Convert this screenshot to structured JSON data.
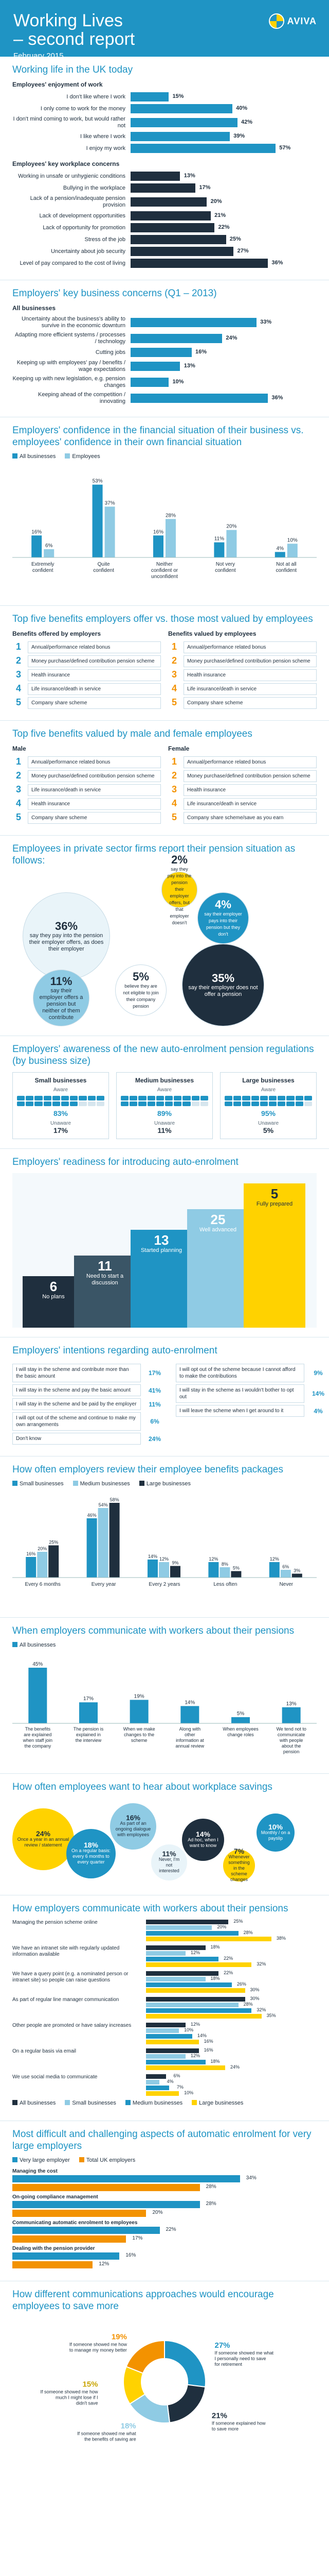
{
  "header": {
    "title_line1": "Working Lives",
    "title_line2": "– second report",
    "date": "February 2015",
    "logo": "AVIVA"
  },
  "colors": {
    "blue": "#1f94c4",
    "light": "#8fcbe4",
    "yellow": "#ffd200",
    "dark": "#1f2f3e",
    "orange": "#f39200"
  },
  "s1": {
    "title": "Working life in the UK today",
    "sub": "Employees' enjoyment of work",
    "items": [
      {
        "label": "I don't like where I work",
        "value": 15
      },
      {
        "label": "I only come to work for the money",
        "value": 40
      },
      {
        "label": "I don't mind coming to work, but would rather not",
        "value": 42
      },
      {
        "label": "I like where I work",
        "value": 39
      },
      {
        "label": "I enjoy my work",
        "value": 57
      }
    ]
  },
  "s2": {
    "sub": "Employees' key workplace concerns",
    "items": [
      {
        "label": "Working in unsafe or unhygienic conditions",
        "value": 13
      },
      {
        "label": "Bullying in the workplace",
        "value": 17
      },
      {
        "label": "Lack of a pension/inadequate pension provision",
        "value": 20
      },
      {
        "label": "Lack of development opportunities",
        "value": 21
      },
      {
        "label": "Lack of opportunity for promotion",
        "value": 22
      },
      {
        "label": "Stress of the job",
        "value": 25
      },
      {
        "label": "Uncertainty about job security",
        "value": 27
      },
      {
        "label": "Level of pay compared to the cost of living",
        "value": 36
      }
    ]
  },
  "s3": {
    "title": "Employers' key business concerns (Q1 – 2013)",
    "sub": "All businesses",
    "items": [
      {
        "label": "Uncertainty about the business's ability to survive in the economic downturn",
        "value": 33
      },
      {
        "label": "Adapting more efficient systems / processes / technology",
        "value": 24
      },
      {
        "label": "Cutting jobs",
        "value": 16
      },
      {
        "label": "Keeping up with employees' pay / benefits / wage expectations",
        "value": 13
      },
      {
        "label": "Keeping up with new legislation, e.g. pension changes",
        "value": 10
      },
      {
        "label": "Keeping ahead of the competition / innovating",
        "value": 36
      }
    ]
  },
  "s4": {
    "title": "Employers' confidence in the financial situation of their business vs. employees' confidence in their own financial situation",
    "legend": [
      "All businesses",
      "Employees"
    ],
    "categories": [
      "Extremely confident",
      "Quite confident",
      "Neither confident or unconfident",
      "Not very confident",
      "Not at all confident"
    ],
    "employers": [
      16,
      53,
      16,
      11,
      4
    ],
    "employees": [
      6,
      37,
      28,
      20,
      10
    ]
  },
  "s5": {
    "title": "Top five benefits employers offer vs. those most valued by employees",
    "left_head": "Benefits offered by employers",
    "right_head": "Benefits valued by employees",
    "left": [
      "Annual/performance related bonus",
      "Money purchase/defined contribution pension scheme",
      "Health insurance",
      "Life insurance/death in service",
      "Company share scheme"
    ],
    "right": [
      "Annual/performance related bonus",
      "Money purchase/defined contribution pension scheme",
      "Health insurance",
      "Life insurance/death in service",
      "Company share scheme"
    ]
  },
  "s6": {
    "title": "Top five benefits valued by male and female employees",
    "male_head": "Male",
    "female_head": "Female",
    "male": [
      "Annual/performance related bonus",
      "Money purchase/defined contribution pension scheme",
      "Life insurance/death in service",
      "Health insurance",
      "Company share scheme"
    ],
    "female": [
      "Annual/performance related bonus",
      "Money purchase/defined contribution pension scheme",
      "Health insurance",
      "Life insurance/death in service",
      "Company share scheme/save as you earn"
    ]
  },
  "s7": {
    "title": "Employees in private sector firms report their pension situation as follows:",
    "items": [
      {
        "value": "2%",
        "text": "say they pay into the pension their employer offers, but that employer doesn't"
      },
      {
        "value": "4%",
        "text": "say their employer pays into their pension but they don't"
      },
      {
        "value": "36%",
        "text": "say they pay into the pension their employer offers, as does their employer"
      },
      {
        "value": "11%",
        "text": "say their employer offers a pension but neither of them contribute"
      },
      {
        "value": "5%",
        "text": "believe they are not eligible to join their company pension"
      },
      {
        "value": "35%",
        "text": "say their employer does not offer a pension"
      }
    ]
  },
  "s8": {
    "title": "Employers' awareness of the new auto-enrolment pension regulations (by business size)",
    "cards": [
      {
        "name": "Small businesses",
        "aware": 83,
        "unaware": 17
      },
      {
        "name": "Medium businesses",
        "aware": 89,
        "unaware": 11
      },
      {
        "name": "Large businesses",
        "aware": 95,
        "unaware": 5
      }
    ],
    "aware_label": "Aware",
    "unaware_label": "Unaware"
  },
  "s9": {
    "title": "Employers' readiness for introducing auto-enrolment",
    "steps": [
      {
        "value": "6",
        "text": "No plans"
      },
      {
        "value": "11",
        "text": "Need to start a discussion"
      },
      {
        "value": "13",
        "text": "Started planning"
      },
      {
        "value": "25",
        "text": "Well advanced"
      },
      {
        "value": "5",
        "text": "Fully prepared"
      }
    ]
  },
  "s10": {
    "title": "Employers' intentions regarding auto-enrolment",
    "left": [
      {
        "label": "I will stay in the scheme and contribute more than the basic amount",
        "value": "17%"
      },
      {
        "label": "I will stay in the scheme and pay the basic amount",
        "value": "41%"
      },
      {
        "label": "I will stay in the scheme and be paid by the employer",
        "value": "11%"
      },
      {
        "label": "I will opt out of the scheme and continue to make my own arrangements",
        "value": "6%"
      },
      {
        "label": "Don't know",
        "value": "24%"
      }
    ],
    "right": [
      {
        "label": "I will opt out of the scheme because I cannot afford to make the contributions",
        "value": "9%"
      },
      {
        "label": "I will stay in the scheme as I wouldn't bother to opt out",
        "value": "14%"
      },
      {
        "label": "I will leave the scheme when I get around to it",
        "value": "4%"
      }
    ]
  },
  "s11": {
    "title": "How often employers review their employee benefits packages",
    "legend": [
      "Small businesses",
      "Medium businesses",
      "Large businesses"
    ],
    "categories": [
      "Every 6 months",
      "Every year",
      "Every 2 years",
      "Less often",
      "Never"
    ],
    "series": [
      {
        "name": "Small businesses",
        "values": [
          16,
          46,
          14,
          12,
          12
        ]
      },
      {
        "name": "Medium businesses",
        "values": [
          20,
          54,
          12,
          8,
          6
        ]
      },
      {
        "name": "Large businesses",
        "values": [
          25,
          58,
          9,
          5,
          3
        ]
      }
    ]
  },
  "s12": {
    "title": "When employers communicate with workers about their pensions",
    "legend": "All businesses",
    "items": [
      {
        "label": "The benefits are explained when staff join the company",
        "value": 45
      },
      {
        "label": "The pension is explained in the interview",
        "value": 17
      },
      {
        "label": "When we make changes to the scheme",
        "value": 19
      },
      {
        "label": "Along with other information at annual review",
        "value": 14
      },
      {
        "label": "When employees change roles",
        "value": 5
      },
      {
        "label": "We tend not to communicate with people about the pension",
        "value": 13
      }
    ]
  },
  "s13": {
    "title": "How often employees want to hear about workplace savings",
    "items": [
      {
        "value": "24%",
        "text": "Once a year in an annual review / statement"
      },
      {
        "value": "18%",
        "text": "On a regular basis: every 6 months to every quarter"
      },
      {
        "value": "16%",
        "text": "As part of an ongoing dialogue with employees"
      },
      {
        "value": "11%",
        "text": "Never, I'm not interested"
      },
      {
        "value": "14%",
        "text": "Ad hoc, when I want to know"
      },
      {
        "value": "7%",
        "text": "Whenever something in the scheme changes"
      },
      {
        "value": "10%",
        "text": "Monthly / on a payslip"
      }
    ]
  },
  "s14": {
    "title": "How employers communicate with workers about their pensions",
    "categories": [
      "Managing the pension scheme online",
      "We have an intranet site with regularly updated information available",
      "We have a query point (e.g. a nominated person or intranet site) so people can raise questions",
      "As part of regular line manager communication",
      "Other people are promoted or have salary increases",
      "On a regular basis via email",
      "We use social media to communicate"
    ],
    "legend": [
      "All businesses",
      "Small businesses",
      "Medium businesses",
      "Large businesses"
    ],
    "series": [
      {
        "name": "All businesses",
        "values": [
          25,
          18,
          22,
          30,
          12,
          16,
          6
        ]
      },
      {
        "name": "Small businesses",
        "values": [
          20,
          12,
          18,
          28,
          10,
          12,
          4
        ]
      },
      {
        "name": "Medium businesses",
        "values": [
          28,
          22,
          26,
          32,
          14,
          18,
          7
        ]
      },
      {
        "name": "Large businesses",
        "values": [
          38,
          32,
          30,
          35,
          16,
          24,
          10
        ]
      }
    ]
  },
  "s15": {
    "title": "Most difficult and challenging aspects of automatic enrolment for very large employers",
    "legend": [
      "Very large employer",
      "Total UK employers"
    ],
    "items": [
      {
        "label": "Managing the cost",
        "a": 34,
        "b": 28
      },
      {
        "label": "On-going compliance management",
        "a": 28,
        "b": 20
      },
      {
        "label": "Communicating automatic enrolment to employees",
        "a": 22,
        "b": 17
      },
      {
        "label": "Dealing with the pension provider",
        "a": 16,
        "b": 12
      }
    ]
  },
  "s16": {
    "title": "How different communications approaches would encourage employees to save more",
    "items": [
      {
        "value": "27%",
        "text": "If someone showed me what I personally need to save for retirement"
      },
      {
        "value": "21%",
        "text": "If someone explained how to save more"
      },
      {
        "value": "18%",
        "text": "If someone showed me what the benefits of saving are"
      },
      {
        "value": "15%",
        "text": "If someone showed me how much I might lose if I didn't save"
      },
      {
        "value": "19%",
        "text": "If someone showed me how to manage my money better"
      }
    ]
  }
}
